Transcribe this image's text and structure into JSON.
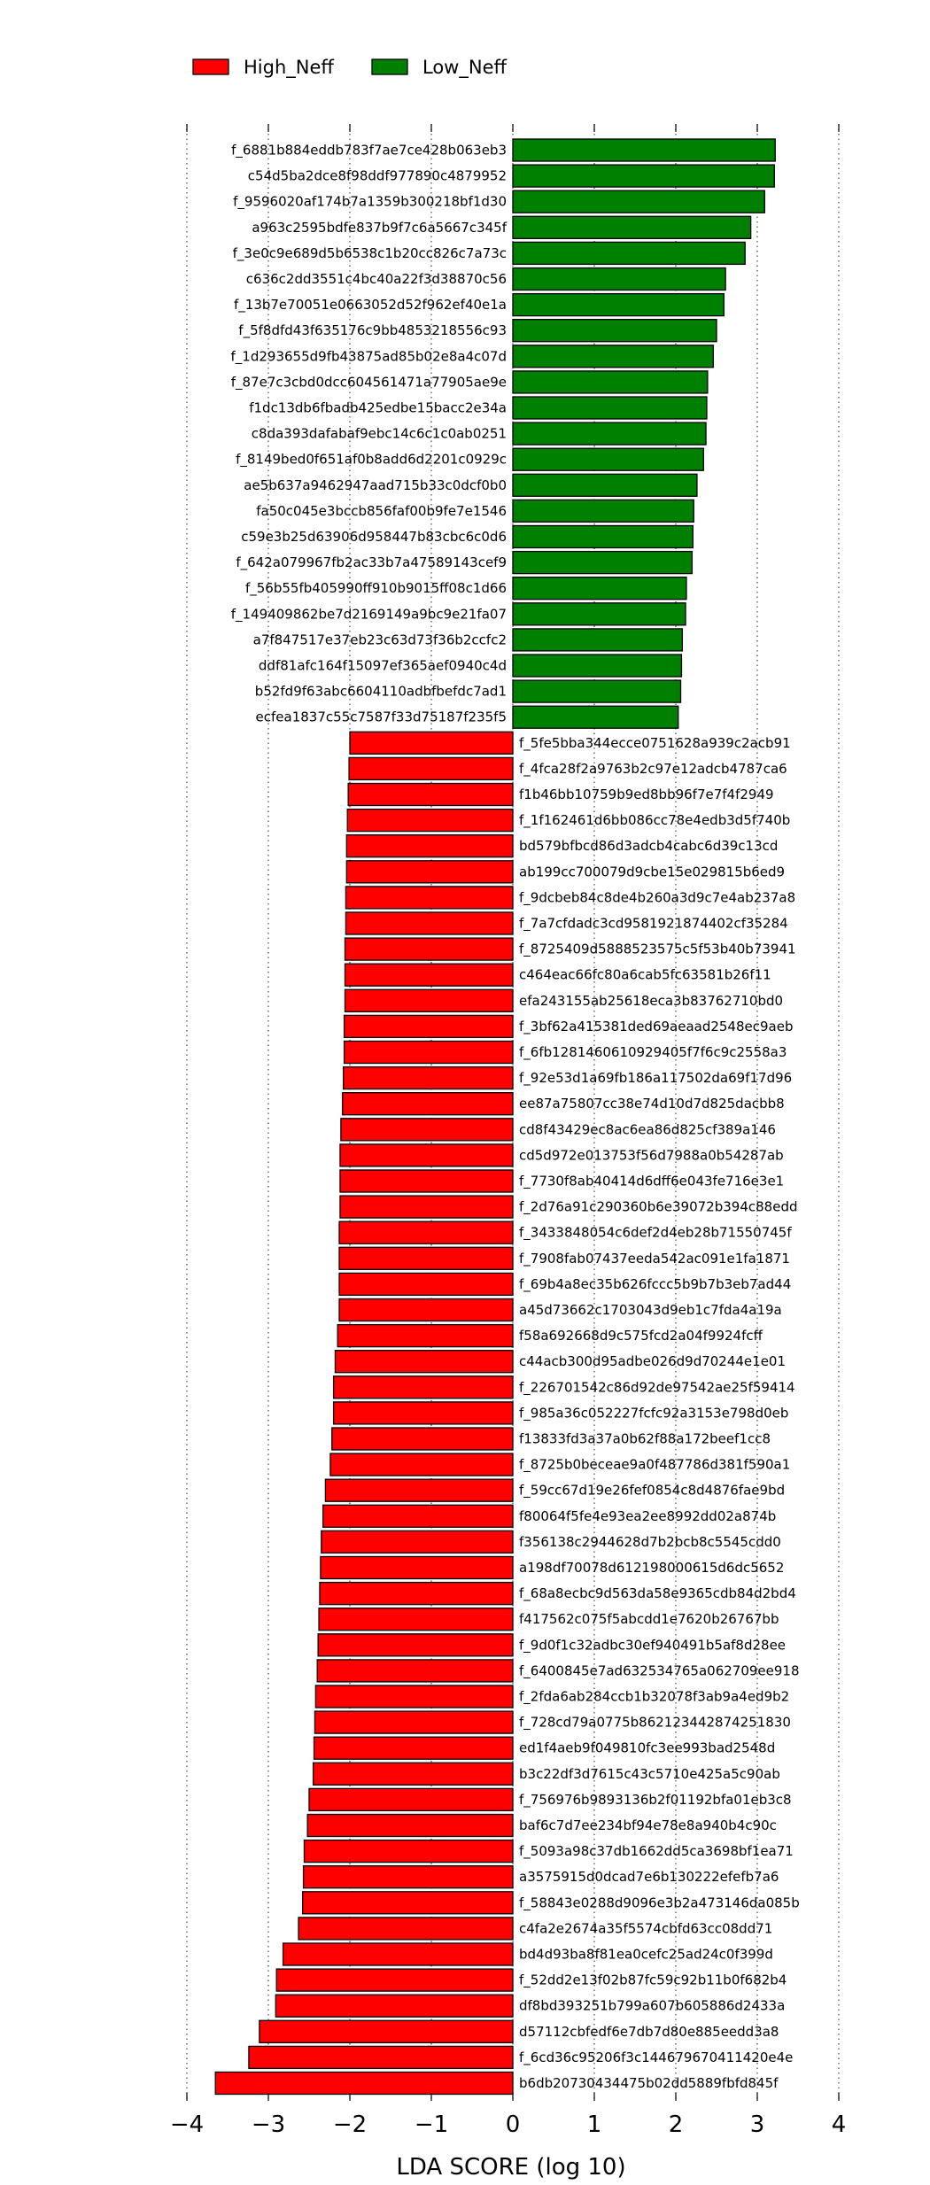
{
  "chart_data": {
    "type": "bar",
    "orientation": "horizontal",
    "xlabel": "LDA SCORE (log 10)",
    "xlim": [
      -4,
      4
    ],
    "xticks": [
      "−4",
      "−3",
      "−2",
      "−1",
      "0",
      "1",
      "2",
      "3",
      "4"
    ],
    "grid": "vertical dotted",
    "legend_position": "top-left",
    "series": [
      {
        "name": "High_Neff",
        "color": "#ff0000"
      },
      {
        "name": "Low_Neff",
        "color": "#008000"
      }
    ],
    "bars": [
      {
        "label": "f_6881b884eddb783f7ae7ce428b063eb3",
        "value": 3.22,
        "group": "Low_Neff"
      },
      {
        "label": "c54d5ba2dce8f98ddf977890c4879952",
        "value": 3.21,
        "group": "Low_Neff"
      },
      {
        "label": "f_9596020af174b7a1359b300218bf1d30",
        "value": 3.09,
        "group": "Low_Neff"
      },
      {
        "label": "a963c2595bdfe837b9f7c6a5667c345f",
        "value": 2.92,
        "group": "Low_Neff"
      },
      {
        "label": "f_3e0c9e689d5b6538c1b20cc826c7a73c",
        "value": 2.85,
        "group": "Low_Neff"
      },
      {
        "label": "c636c2dd3551c4bc40a22f3d38870c56",
        "value": 2.61,
        "group": "Low_Neff"
      },
      {
        "label": "f_13b7e70051e0663052d52f962ef40e1a",
        "value": 2.59,
        "group": "Low_Neff"
      },
      {
        "label": "f_5f8dfd43f635176c9bb4853218556c93",
        "value": 2.5,
        "group": "Low_Neff"
      },
      {
        "label": "f_1d293655d9fb43875ad85b02e8a4c07d",
        "value": 2.46,
        "group": "Low_Neff"
      },
      {
        "label": "f_87e7c3cbd0dcc604561471a77905ae9e",
        "value": 2.39,
        "group": "Low_Neff"
      },
      {
        "label": "f1dc13db6fbadb425edbe15bacc2e34a",
        "value": 2.38,
        "group": "Low_Neff"
      },
      {
        "label": "c8da393dafabaf9ebc14c6c1c0ab0251",
        "value": 2.37,
        "group": "Low_Neff"
      },
      {
        "label": "f_8149bed0f651af0b8add6d2201c0929c",
        "value": 2.34,
        "group": "Low_Neff"
      },
      {
        "label": "ae5b637a9462947aad715b33c0dcf0b0",
        "value": 2.26,
        "group": "Low_Neff"
      },
      {
        "label": "fa50c045e3bccb856faf00b9fe7e1546",
        "value": 2.22,
        "group": "Low_Neff"
      },
      {
        "label": "c59e3b25d63906d958447b83cbc6c0d6",
        "value": 2.21,
        "group": "Low_Neff"
      },
      {
        "label": "f_642a079967fb2ac33b7a47589143cef9",
        "value": 2.2,
        "group": "Low_Neff"
      },
      {
        "label": "f_56b55fb405990ff910b9015ff08c1d66",
        "value": 2.13,
        "group": "Low_Neff"
      },
      {
        "label": "f_149409862be7d2169149a9bc9e21fa07",
        "value": 2.12,
        "group": "Low_Neff"
      },
      {
        "label": "a7f847517e37eb23c63d73f36b2ccfc2",
        "value": 2.08,
        "group": "Low_Neff"
      },
      {
        "label": "ddf81afc164f15097ef365aef0940c4d",
        "value": 2.07,
        "group": "Low_Neff"
      },
      {
        "label": "b52fd9f63abc6604110adbfbefdc7ad1",
        "value": 2.06,
        "group": "Low_Neff"
      },
      {
        "label": "ecfea1837c55c7587f33d75187f235f5",
        "value": 2.03,
        "group": "Low_Neff"
      },
      {
        "label": "f_5fe5bba344ecce0751628a939c2acb91",
        "value": -2.0,
        "group": "High_Neff"
      },
      {
        "label": "f_4fca28f2a9763b2c97e12adcb4787ca6",
        "value": -2.01,
        "group": "High_Neff"
      },
      {
        "label": "f1b46bb10759b9ed8bb96f7e7f4f2949",
        "value": -2.02,
        "group": "High_Neff"
      },
      {
        "label": "f_1f162461d6bb086cc78e4edb3d5f740b",
        "value": -2.03,
        "group": "High_Neff"
      },
      {
        "label": "bd579bfbcd86d3adcb4cabc6d39c13cd",
        "value": -2.04,
        "group": "High_Neff"
      },
      {
        "label": "ab199cc700079d9cbe15e029815b6ed9",
        "value": -2.04,
        "group": "High_Neff"
      },
      {
        "label": "f_9dcbeb84c8de4b260a3d9c7e4ab237a8",
        "value": -2.05,
        "group": "High_Neff"
      },
      {
        "label": "f_7a7cfdadc3cd9581921874402cf35284",
        "value": -2.05,
        "group": "High_Neff"
      },
      {
        "label": "f_8725409d5888523575c5f53b40b73941",
        "value": -2.06,
        "group": "High_Neff"
      },
      {
        "label": "c464eac66fc80a6cab5fc63581b26f11",
        "value": -2.06,
        "group": "High_Neff"
      },
      {
        "label": "efa243155ab25618eca3b83762710bd0",
        "value": -2.06,
        "group": "High_Neff"
      },
      {
        "label": "f_3bf62a415381ded69aeaad2548ec9aeb",
        "value": -2.07,
        "group": "High_Neff"
      },
      {
        "label": "f_6fb1281460610929405f7f6c9c2558a3",
        "value": -2.07,
        "group": "High_Neff"
      },
      {
        "label": "f_92e53d1a69fb186a117502da69f17d96",
        "value": -2.08,
        "group": "High_Neff"
      },
      {
        "label": "ee87a75807cc38e74d10d7d825dacbb8",
        "value": -2.09,
        "group": "High_Neff"
      },
      {
        "label": "cd8f43429ec8ac6ea86d825cf389a146",
        "value": -2.11,
        "group": "High_Neff"
      },
      {
        "label": "cd5d972e013753f56d7988a0b54287ab",
        "value": -2.12,
        "group": "High_Neff"
      },
      {
        "label": "f_7730f8ab40414d6dff6e043fe716e3e1",
        "value": -2.12,
        "group": "High_Neff"
      },
      {
        "label": "f_2d76a91c290360b6e39072b394c88edd",
        "value": -2.12,
        "group": "High_Neff"
      },
      {
        "label": "f_3433848054c6def2d4eb28b71550745f",
        "value": -2.13,
        "group": "High_Neff"
      },
      {
        "label": "f_7908fab07437eeda542ac091e1fa1871",
        "value": -2.13,
        "group": "High_Neff"
      },
      {
        "label": "f_69b4a8ec35b626fccc5b9b7b3eb7ad44",
        "value": -2.13,
        "group": "High_Neff"
      },
      {
        "label": "a45d73662c1703043d9eb1c7fda4a19a",
        "value": -2.13,
        "group": "High_Neff"
      },
      {
        "label": "f58a692668d9c575fcd2a04f9924fcff",
        "value": -2.15,
        "group": "High_Neff"
      },
      {
        "label": "c44acb300d95adbe026d9d70244e1e01",
        "value": -2.18,
        "group": "High_Neff"
      },
      {
        "label": "f_226701542c86d92de97542ae25f59414",
        "value": -2.2,
        "group": "High_Neff"
      },
      {
        "label": "f_985a36c052227fcfc92a3153e798d0eb",
        "value": -2.2,
        "group": "High_Neff"
      },
      {
        "label": "f13833fd3a37a0b62f88a172beef1cc8",
        "value": -2.22,
        "group": "High_Neff"
      },
      {
        "label": "f_8725b0beceae9a0f487786d381f590a1",
        "value": -2.24,
        "group": "High_Neff"
      },
      {
        "label": "f_59cc67d19e26fef0854c8d4876fae9bd",
        "value": -2.3,
        "group": "High_Neff"
      },
      {
        "label": "f80064f5fe4e93ea2ee8992dd02a874b",
        "value": -2.33,
        "group": "High_Neff"
      },
      {
        "label": "f356138c2944628d7b2bcb8c5545cdd0",
        "value": -2.35,
        "group": "High_Neff"
      },
      {
        "label": "a198df70078d612198000615d6dc5652",
        "value": -2.36,
        "group": "High_Neff"
      },
      {
        "label": "f_68a8ecbc9d563da58e9365cdb84d2bd4",
        "value": -2.37,
        "group": "High_Neff"
      },
      {
        "label": "f417562c075f5abcdd1e7620b26767bb",
        "value": -2.38,
        "group": "High_Neff"
      },
      {
        "label": "f_9d0f1c32adbc30ef940491b5af8d28ee",
        "value": -2.39,
        "group": "High_Neff"
      },
      {
        "label": "f_6400845e7ad632534765a062709ee918",
        "value": -2.4,
        "group": "High_Neff"
      },
      {
        "label": "f_2fda6ab284ccb1b32078f3ab9a4ed9b2",
        "value": -2.42,
        "group": "High_Neff"
      },
      {
        "label": "f_728cd79a0775b862123442874251830",
        "value": -2.43,
        "group": "High_Neff"
      },
      {
        "label": "ed1f4aeb9f049810fc3ee993bad2548d",
        "value": -2.44,
        "group": "High_Neff"
      },
      {
        "label": "b3c22df3d7615c43c5710e425a5c90ab",
        "value": -2.45,
        "group": "High_Neff"
      },
      {
        "label": "f_756976b9893136b2f01192bfa01eb3c8",
        "value": -2.5,
        "group": "High_Neff"
      },
      {
        "label": "baf6c7d7ee234bf94e78e8a940b4c90c",
        "value": -2.52,
        "group": "High_Neff"
      },
      {
        "label": "f_5093a98c37db1662dd5ca3698bf1ea71",
        "value": -2.56,
        "group": "High_Neff"
      },
      {
        "label": "a3575915d0dcad7e6b130222efefb7a6",
        "value": -2.57,
        "group": "High_Neff"
      },
      {
        "label": "f_58843e0288d9096e3b2a473146da085b",
        "value": -2.58,
        "group": "High_Neff"
      },
      {
        "label": "c4fa2e2674a35f5574cbfd63cc08dd71",
        "value": -2.63,
        "group": "High_Neff"
      },
      {
        "label": "bd4d93ba8f81ea0cefc25ad24c0f399d",
        "value": -2.82,
        "group": "High_Neff"
      },
      {
        "label": "f_52dd2e13f02b87fc59c92b11b0f682b4",
        "value": -2.9,
        "group": "High_Neff"
      },
      {
        "label": "df8bd393251b799a607b605886d2433a",
        "value": -2.91,
        "group": "High_Neff"
      },
      {
        "label": "d57112cbfedf6e7db7d80e885eedd3a8",
        "value": -3.11,
        "group": "High_Neff"
      },
      {
        "label": "f_6cd36c95206f3c144679670411420e4e",
        "value": -3.24,
        "group": "High_Neff"
      },
      {
        "label": "b6db20730434475b02dd5889fbfd845f",
        "value": -3.65,
        "group": "High_Neff"
      }
    ]
  }
}
